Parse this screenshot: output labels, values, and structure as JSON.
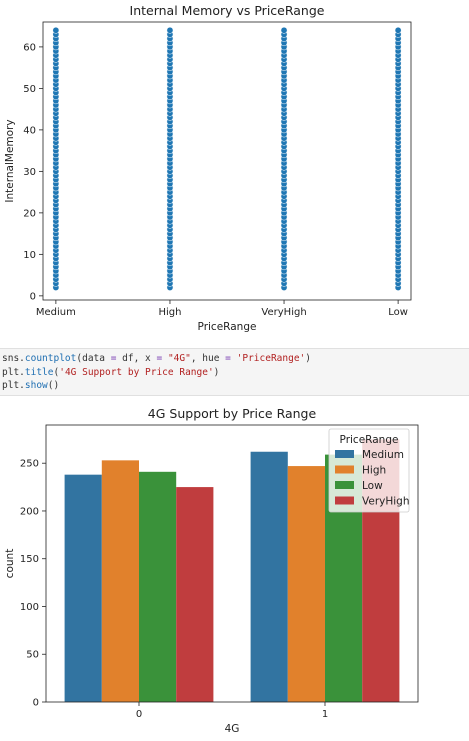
{
  "chart_data": [
    {
      "type": "scatter",
      "title": "Internal Memory vs PriceRange",
      "xlabel": "PriceRange",
      "ylabel": "InternalMemory",
      "categories": [
        "Medium",
        "High",
        "VeryHigh",
        "Low"
      ],
      "y_values": [
        2,
        3,
        4,
        5,
        6,
        7,
        8,
        9,
        10,
        11,
        12,
        13,
        14,
        15,
        16,
        17,
        18,
        19,
        20,
        21,
        22,
        23,
        24,
        25,
        26,
        27,
        28,
        29,
        30,
        31,
        32,
        33,
        34,
        35,
        36,
        37,
        38,
        39,
        40,
        41,
        42,
        43,
        44,
        45,
        46,
        47,
        48,
        49,
        50,
        51,
        52,
        53,
        54,
        55,
        56,
        57,
        58,
        59,
        60,
        61,
        62,
        63,
        64
      ],
      "yticks": [
        0,
        10,
        20,
        30,
        40,
        50,
        60
      ],
      "ylim": [
        -1,
        66
      ],
      "color": "#1f77b4"
    },
    {
      "type": "bar",
      "title": "4G Support by Price Range",
      "xlabel": "4G",
      "ylabel": "count",
      "categories": [
        "0",
        "1"
      ],
      "legend_title": "PriceRange",
      "legend_position": "top-right",
      "series": [
        {
          "name": "Medium",
          "color": "#3274a1",
          "values": [
            238,
            262
          ]
        },
        {
          "name": "High",
          "color": "#e1812c",
          "values": [
            253,
            247
          ]
        },
        {
          "name": "Low",
          "color": "#3a923a",
          "values": [
            241,
            259
          ]
        },
        {
          "name": "VeryHigh",
          "color": "#c03d3e",
          "values": [
            225,
            275
          ]
        }
      ],
      "yticks": [
        0,
        50,
        100,
        150,
        200,
        250
      ],
      "ylim": [
        0,
        290
      ]
    }
  ],
  "code": {
    "line1": {
      "p1": "sns.",
      "p2": "countplot",
      "p3": "(data ",
      "p4": "=",
      "p5": " df, x ",
      "p6": "=",
      "p7": " ",
      "p8": "\"4G\"",
      "p9": ", hue ",
      "p10": "=",
      "p11": " ",
      "p12": "'PriceRange'",
      "p13": ")"
    },
    "line2": {
      "p1": "plt.",
      "p2": "title",
      "p3": "(",
      "p4": "'4G Support by Price Range'",
      "p5": ")"
    },
    "line3": {
      "p1": "plt.",
      "p2": "show",
      "p3": "()"
    }
  }
}
